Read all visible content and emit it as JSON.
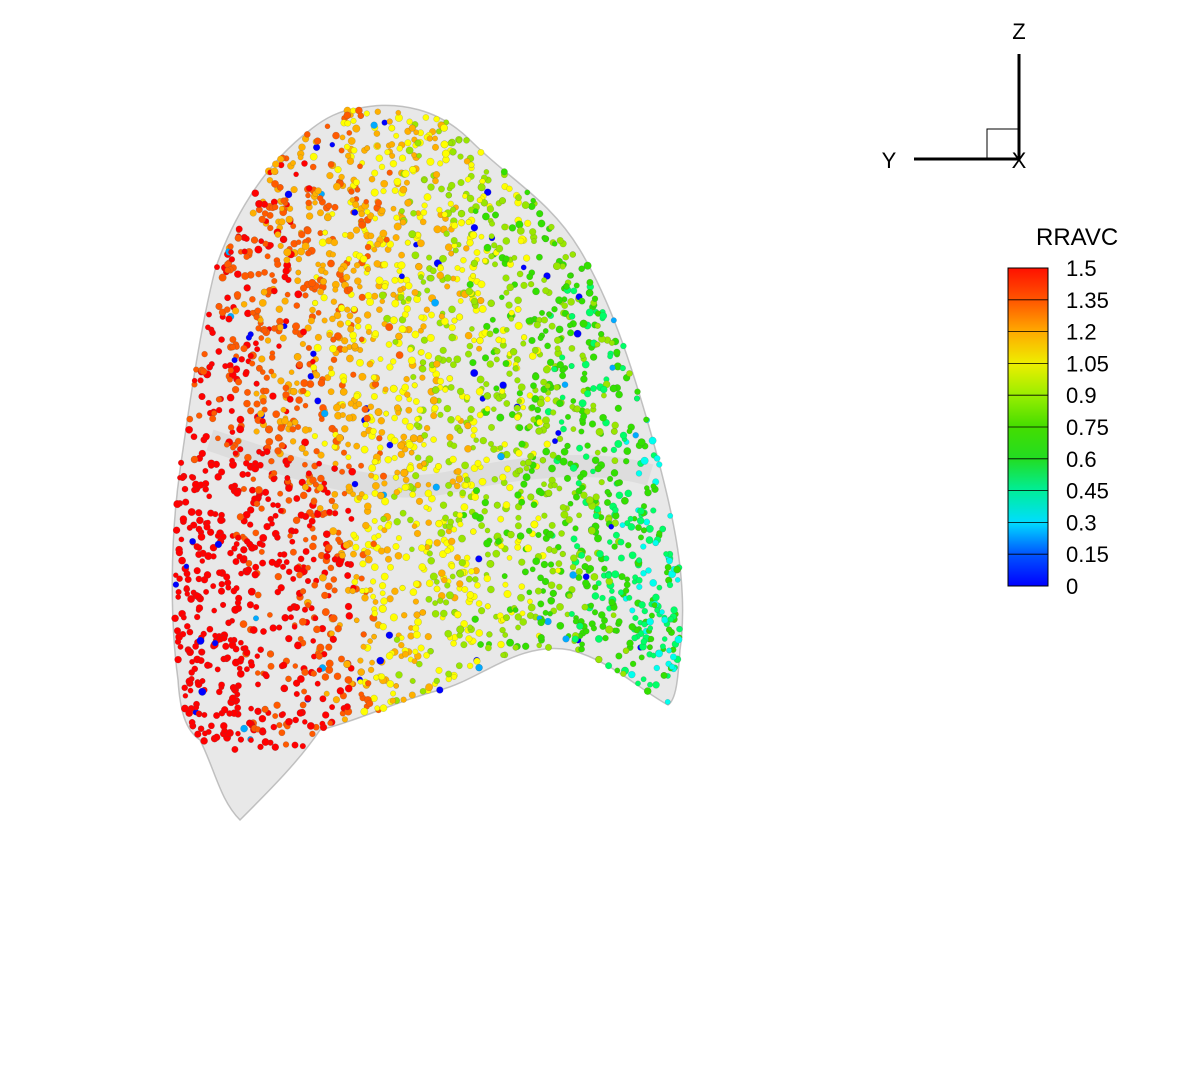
{
  "chart_data": {
    "type": "scatter",
    "render": "3d-point-cloud",
    "description_variable": "RRAVC",
    "legend": {
      "title": "RRAVC",
      "placement": "right",
      "levels": [
        "1.5",
        "1.35",
        "1.2",
        "1.05",
        "0.9",
        "0.75",
        "0.6",
        "0.45",
        "0.3",
        "0.15",
        "0"
      ],
      "range": [
        0,
        1.5
      ],
      "colormap": [
        "#0000ff",
        "#00aaff",
        "#00ffee",
        "#00ff66",
        "#33e000",
        "#99e600",
        "#ffff00",
        "#ffb000",
        "#ff5a00",
        "#ff0000"
      ]
    },
    "axes_triad": {
      "labels": {
        "z": "Z",
        "y": "Y",
        "x": "X"
      },
      "placement": "top-right"
    },
    "surface": {
      "color": "#bdbdbd",
      "opacity": 0.35
    },
    "grid": false
  }
}
